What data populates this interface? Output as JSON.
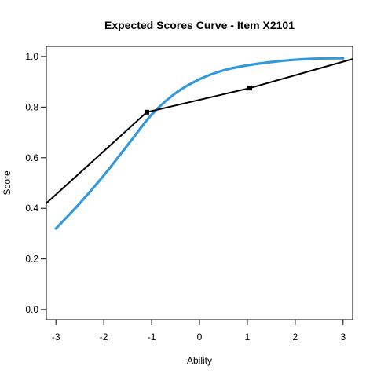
{
  "chart_data": {
    "type": "line",
    "title": "Expected Scores Curve - Item  X2101",
    "xlabel": "Ability",
    "ylabel": "Score",
    "xlim": [
      -3.2,
      3.2
    ],
    "ylim": [
      -0.04,
      1.04
    ],
    "x_ticks": [
      -3,
      -2,
      -1,
      0,
      1,
      2,
      3
    ],
    "x_tick_labels": [
      "-3",
      "-2",
      "-1",
      "0",
      "1",
      "2",
      "3"
    ],
    "y_ticks": [
      0.0,
      0.2,
      0.4,
      0.6,
      0.8,
      1.0
    ],
    "y_tick_labels": [
      "0.0",
      "0.2",
      "0.4",
      "0.6",
      "0.8",
      "1.0"
    ],
    "grid": false,
    "colors": {
      "curve": "#3399dd",
      "lines": "#000000"
    },
    "series": [
      {
        "kind": "curve",
        "x": [
          -3.0,
          -2.5,
          -2.0,
          -1.5,
          -1.0,
          -0.5,
          0.0,
          0.5,
          1.0,
          1.5,
          2.0,
          2.5,
          3.0
        ],
        "y": [
          0.32,
          0.42,
          0.53,
          0.65,
          0.77,
          0.855,
          0.91,
          0.945,
          0.965,
          0.978,
          0.987,
          0.992,
          0.993
        ]
      },
      {
        "kind": "line",
        "x": [
          -3.2,
          -1.1,
          1.05,
          3.2
        ],
        "y": [
          0.42,
          0.78,
          0.875,
          0.99
        ]
      },
      {
        "kind": "points",
        "x": [
          -1.1,
          1.05
        ],
        "y": [
          0.78,
          0.875
        ]
      }
    ]
  }
}
